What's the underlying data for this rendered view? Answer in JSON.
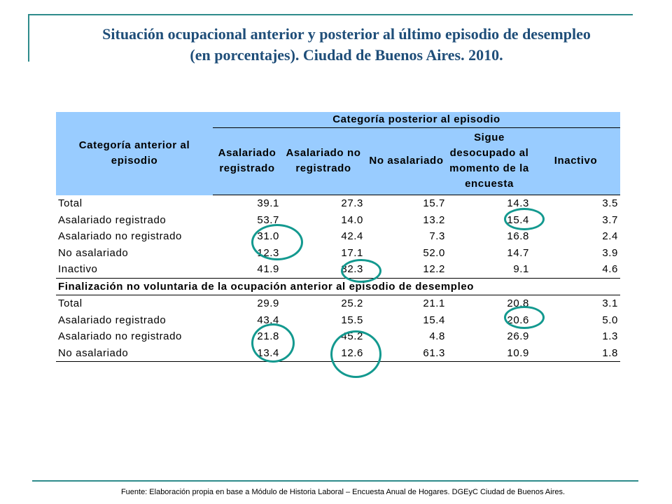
{
  "title": {
    "line1": "Situación ocupacional anterior y posterior al último episodio de desempleo",
    "line2": "(en porcentajes). Ciudad de Buenos Aires. 2010."
  },
  "table": {
    "row_header": "Categoría anterior al episodio",
    "group_header": "Categoría posterior al episodio",
    "columns": [
      "Asalariado registrado",
      "Asalariado no registrado",
      "No asalariado",
      "Sigue desocupado al momento de la encuesta",
      "Inactivo"
    ],
    "rows_a": [
      {
        "label": "Total",
        "values": [
          "39.1",
          "27.3",
          "15.7",
          "14.3",
          "3.5"
        ]
      },
      {
        "label": "Asalariado registrado",
        "values": [
          "53.7",
          "14.0",
          "13.2",
          "15.4",
          "3.7"
        ]
      },
      {
        "label": "Asalariado no registrado",
        "values": [
          "31.0",
          "42.4",
          "7.3",
          "16.8",
          "2.4"
        ]
      },
      {
        "label": "No asalariado",
        "values": [
          "12.3",
          "17.1",
          "52.0",
          "14.7",
          "3.9"
        ]
      },
      {
        "label": "Inactivo",
        "values": [
          "41.9",
          "32.3",
          "12.2",
          "9.1",
          "4.6"
        ]
      }
    ],
    "section_label": "Finalización no voluntaria de la ocupación anterior al episodio de desempleo",
    "rows_b": [
      {
        "label": "Total",
        "values": [
          "29.9",
          "25.2",
          "21.1",
          "20.8",
          "3.1"
        ]
      },
      {
        "label": "Asalariado registrado",
        "values": [
          "43.4",
          "15.5",
          "15.4",
          "20.6",
          "5.0"
        ]
      },
      {
        "label": "Asalariado no registrado",
        "values": [
          "21.8",
          "45.2",
          "4.8",
          "26.9",
          "1.3"
        ]
      },
      {
        "label": "No asalariado",
        "values": [
          "13.4",
          "12.6",
          "61.3",
          "10.9",
          "1.8"
        ]
      }
    ]
  },
  "highlight_color": "#13998f",
  "footnote": "Fuente: Elaboración propia en base a Módulo de Historia Laboral – Encuesta Anual de Hogares. DGEyC Ciudad de Buenos Aires."
}
